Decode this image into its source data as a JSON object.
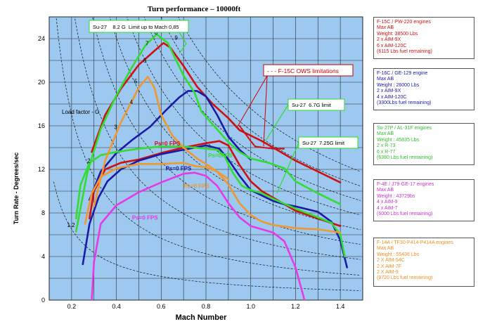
{
  "chart_data": {
    "type": "line",
    "title": "Turn performance – 10000ft",
    "xlabel": "Mach Number",
    "ylabel": "Turn Rate  - Degrees/sec",
    "xlim": [
      0.1,
      1.5
    ],
    "ylim": [
      0,
      26
    ],
    "xticks": [
      "0.2",
      "0.4",
      "0.6",
      "0.8",
      "1.0",
      "1.2",
      "1.4"
    ],
    "yticks": [
      "0",
      "4",
      "8",
      "12",
      "16",
      "20",
      "24"
    ],
    "grid": true,
    "load_factor_label": "Load factor - G",
    "load_factor_lines": [
      {
        "label": "1.2",
        "lx": 0.18,
        "ly": 6.7
      },
      {
        "label": "2",
        "lx": 0.27,
        "ly": 12.6
      },
      {
        "label": "3",
        "lx": 0.39,
        "ly": 15.7
      },
      {
        "label": "4",
        "lx": 0.46,
        "ly": 18.0
      },
      {
        "label": "5",
        "lx": 0.48,
        "ly": 19.9
      },
      {
        "label": "6",
        "lx": 0.52,
        "ly": 21.8
      },
      {
        "label": "7",
        "lx": 0.53,
        "ly": 23.4
      },
      {
        "label": "8",
        "lx": 0.57,
        "ly": 24.4
      },
      {
        "label": "9",
        "lx": 0.66,
        "ly": 23.9
      }
    ],
    "series": [
      {
        "name": "F-15C max",
        "color": "#d01010",
        "x": [
          0.29,
          0.35,
          0.42,
          0.5,
          0.56,
          0.61,
          0.64,
          0.7,
          0.76,
          0.83,
          0.9,
          0.95,
          1.0,
          1.05,
          1.1,
          1.2,
          1.3,
          1.4
        ],
        "y": [
          13.6,
          17.0,
          19.4,
          21.6,
          22.7,
          23.6,
          23.2,
          21.5,
          19.6,
          18.0,
          16.7,
          15.6,
          15.1,
          14.6,
          14.0,
          12.8,
          11.8,
          10.8
        ]
      },
      {
        "name": "F-15C Ps=0",
        "color": "#d01010",
        "x": [
          0.28,
          0.3,
          0.35,
          0.42,
          0.5,
          0.6,
          0.7,
          0.8,
          0.86,
          0.9,
          0.95,
          1.0,
          1.05,
          1.1,
          1.2,
          1.3,
          1.4
        ],
        "y": [
          7.5,
          10.0,
          12.0,
          12.6,
          12.9,
          13.5,
          14.0,
          14.4,
          14.6,
          14.2,
          12.4,
          10.9,
          10.0,
          9.4,
          8.2,
          7.5,
          6.8
        ]
      },
      {
        "name": "F-16C max",
        "color": "#1a1aaa",
        "x": [
          0.28,
          0.33,
          0.4,
          0.47,
          0.55,
          0.62,
          0.68,
          0.72,
          0.76,
          0.8,
          0.85,
          0.9,
          0.95,
          1.0
        ],
        "y": [
          9.2,
          11.8,
          13.5,
          14.7,
          15.9,
          17.4,
          18.6,
          19.2,
          19.2,
          18.7,
          17.0,
          15.0,
          13.8,
          12.9
        ]
      },
      {
        "name": "F-16C Ps=0",
        "color": "#1a1aaa",
        "x": [
          0.25,
          0.28,
          0.32,
          0.36,
          0.42,
          0.5,
          0.6,
          0.7,
          0.8,
          0.86,
          0.9,
          0.95,
          1.0,
          1.05,
          1.1,
          1.15,
          1.2,
          1.3,
          1.36,
          1.4,
          1.43
        ],
        "y": [
          3.3,
          7.0,
          9.4,
          10.9,
          12.0,
          12.8,
          13.4,
          13.8,
          14.2,
          13.9,
          12.9,
          11.4,
          10.1,
          9.6,
          9.1,
          8.8,
          8.6,
          8.1,
          7.2,
          5.5,
          3.0
        ]
      },
      {
        "name": "Su-27 max",
        "color": "#30dd30",
        "x": [
          0.22,
          0.27,
          0.33,
          0.4,
          0.47,
          0.53,
          0.58,
          0.63,
          0.7,
          0.75,
          0.78,
          0.9,
          0.95,
          1.0,
          1.08,
          1.15,
          1.2,
          1.3,
          1.4
        ],
        "y": [
          6.3,
          11.7,
          15.7,
          18.8,
          21.4,
          23.4,
          24.4,
          23.6,
          20.6,
          19.0,
          17.3,
          14.5,
          13.6,
          13.0,
          12.6,
          12.1,
          10.9,
          9.8,
          8.8
        ]
      },
      {
        "name": "Su-27 Ps=0",
        "color": "#30dd30",
        "x": [
          0.22,
          0.24,
          0.28,
          0.33,
          0.4,
          0.5,
          0.6,
          0.7,
          0.8,
          0.85,
          0.88,
          0.92,
          0.96,
          1.0,
          1.05,
          1.1,
          1.2,
          1.3,
          1.36,
          1.4,
          1.42
        ],
        "y": [
          7.5,
          10.6,
          12.6,
          13.3,
          13.6,
          13.9,
          14.1,
          14.1,
          13.9,
          13.8,
          13.3,
          11.7,
          10.5,
          10.1,
          9.8,
          9.3,
          8.4,
          7.6,
          7.1,
          6.0,
          4.0
        ]
      },
      {
        "name": "F-14A max",
        "color": "#f09830",
        "x": [
          0.3,
          0.35,
          0.42,
          0.5,
          0.54,
          0.57,
          0.6,
          0.65,
          0.7,
          0.76,
          0.8,
          0.85,
          0.9
        ],
        "y": [
          8.6,
          12.8,
          16.3,
          19.5,
          20.5,
          19.5,
          17.0,
          15.1,
          14.0,
          13.0,
          12.5,
          11.8,
          11.1
        ]
      },
      {
        "name": "F-14A Ps=0",
        "color": "#f09830",
        "x": [
          0.26,
          0.29,
          0.33,
          0.4,
          0.5,
          0.6,
          0.7,
          0.75,
          0.8,
          0.85,
          0.9,
          0.95,
          1.0,
          1.05,
          1.1,
          1.2,
          1.3,
          1.4
        ],
        "y": [
          7.0,
          9.8,
          11.3,
          12.1,
          12.5,
          12.5,
          12.6,
          12.3,
          12.2,
          11.8,
          10.6,
          8.9,
          7.8,
          7.2,
          6.9,
          6.6,
          6.5,
          6.2
        ]
      },
      {
        "name": "F-4E Ps=0",
        "color": "#e838e8",
        "x": [
          0.29,
          0.3,
          0.33,
          0.4,
          0.5,
          0.6,
          0.7,
          0.75,
          0.8,
          0.85,
          0.9,
          0.95,
          1.0,
          1.05,
          1.1,
          1.15,
          1.2,
          1.24
        ],
        "y": [
          0.0,
          3.5,
          7.0,
          8.7,
          9.9,
          10.8,
          11.6,
          11.7,
          11.4,
          10.5,
          8.9,
          7.6,
          6.8,
          6.5,
          6.2,
          5.4,
          3.0,
          0.0
        ]
      },
      {
        "name": "F-15C OWS limitations",
        "color": "#d01010",
        "dashed": true,
        "x": [
          0.95,
          1.0,
          1.02,
          1.1,
          1.15
        ],
        "y": [
          16.0,
          14.6,
          14.1,
          13.9,
          13.9
        ]
      }
    ],
    "annotations": [
      {
        "text": "Su-27    8.2 G  Limit up to Mach 0,85",
        "color": "#000000"
      },
      {
        "text": "- - - F-15C OWS limitations",
        "color": "#cc0000"
      },
      {
        "text": "Su-27  6.7G limit",
        "color": "#000000"
      },
      {
        "text": "Su-27  7.25G limit",
        "color": "#000000"
      }
    ],
    "ps_labels": [
      {
        "text": "Ps=0 FPS",
        "color": "#d01010",
        "x": 0.57,
        "y": 14.2
      },
      {
        "text": "Ps=0FPS",
        "color": "#30dd30",
        "x": 0.81,
        "y": 13.1
      },
      {
        "text": "Ps=0 FPS",
        "color": "#1a1aaa",
        "x": 0.62,
        "y": 11.9
      },
      {
        "text": "Ps=0 FPS",
        "color": "#f09830",
        "x": 0.7,
        "y": 10.3
      },
      {
        "text": "Ps=0 FPS",
        "color": "#e838e8",
        "x": 0.47,
        "y": 7.4
      }
    ]
  },
  "legends": [
    {
      "color": "#d01010",
      "lines": [
        "F-15C / PW-220 engines",
        "Max AB",
        "Weight: 38500 Lbs",
        "2 x AIM-9X",
        "6 x AIM-120C",
        "(6115 Lbs fuel remaining)"
      ]
    },
    {
      "color": "#1a1aaa",
      "lines": [
        "F-16C / GE-129 engine",
        "Max AB",
        "Weight : 26000 Lbs",
        "2 x AIM-9X",
        "4 x AIM-120C",
        "(3300Lbs fuel remaining)"
      ]
    },
    {
      "color": "#2fbf2f",
      "lines": [
        "Su-27P / AL-31F engines",
        "Max AB",
        "Weight : 45835 Lbs",
        "2 x R-73",
        "6 x R-77",
        "(6380 Lbs fuel remaining)"
      ]
    },
    {
      "color": "#cc33cc",
      "lines": [
        "F-4E / J79-GE-17 engines",
        "Max AB",
        "Weight : 43729bs",
        "4 x AIM-9",
        "4 x AIM-7",
        "(6000 Lbs fuel remaining)"
      ]
    },
    {
      "color": "#ee9020",
      "lines": [
        "F-14A /  TF30-P414-P414A  engines",
        "Max AB",
        "Weight : 55436 Lbs",
        "2 X AIM-54C",
        "2 X AIM-7F",
        "2 X AIM-9",
        "(9720 Lbs fuel remaining)"
      ]
    }
  ]
}
